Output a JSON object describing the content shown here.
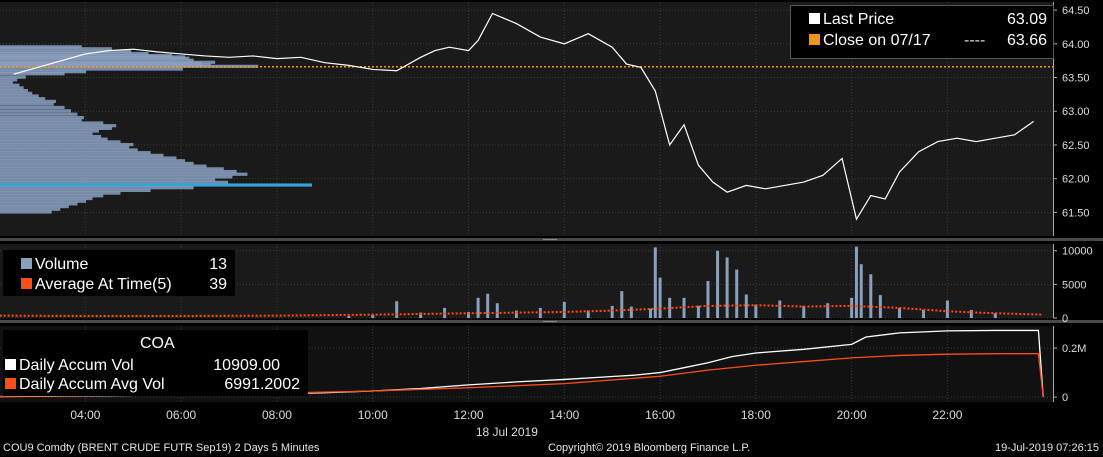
{
  "chart_data": [
    {
      "type": "line",
      "panel": "price",
      "ylim": [
        61.15,
        64.62
      ],
      "y_ticks": [
        "64.50",
        "64.00",
        "63.50",
        "63.00",
        "62.50",
        "62.00",
        "61.50"
      ],
      "series": [
        {
          "name": "Last Price",
          "value_label": "63.09",
          "x": [
            2.5,
            3.0,
            3.5,
            4.0,
            4.5,
            5.0,
            5.5,
            6.0,
            6.5,
            7.0,
            7.5,
            8.0,
            8.5,
            9.0,
            9.5,
            10.0,
            10.5,
            11.0,
            11.3,
            11.6,
            12.0,
            12.2,
            12.5,
            13.0,
            13.5,
            14.0,
            14.5,
            15.0,
            15.3,
            15.6,
            15.9,
            16.2,
            16.5,
            16.8,
            17.1,
            17.4,
            17.8,
            18.2,
            18.6,
            19.0,
            19.4,
            19.8,
            20.1,
            20.4,
            20.7,
            21.0,
            21.4,
            21.8,
            22.2,
            22.6,
            23.0,
            23.4,
            23.8
          ],
          "y": [
            63.55,
            63.65,
            63.75,
            63.85,
            63.9,
            63.92,
            63.88,
            63.85,
            63.82,
            63.8,
            63.82,
            63.78,
            63.8,
            63.72,
            63.68,
            63.62,
            63.6,
            63.8,
            63.9,
            63.95,
            63.9,
            64.05,
            64.45,
            64.3,
            64.1,
            64.0,
            64.15,
            63.95,
            63.7,
            63.65,
            63.3,
            62.5,
            62.8,
            62.2,
            61.95,
            61.8,
            61.9,
            61.85,
            61.9,
            61.95,
            62.05,
            62.3,
            61.4,
            61.75,
            61.7,
            62.1,
            62.4,
            62.55,
            62.6,
            62.55,
            62.6,
            62.65,
            62.85
          ]
        },
        {
          "name": "Close on 07/17",
          "value_label": "63.66",
          "y": 63.66
        }
      ],
      "volume_profile": {
        "color": "#8aa0bf",
        "highlight_color": "#2ea6d9",
        "price_levels": [
          63.95,
          63.92,
          63.88,
          63.85,
          63.82,
          63.8,
          63.78,
          63.75,
          63.72,
          63.7,
          63.68,
          63.66,
          63.62,
          63.58,
          63.55,
          63.5,
          63.46,
          63.42,
          63.38,
          63.34,
          63.3,
          63.26,
          63.22,
          63.18,
          63.14,
          63.1,
          63.05,
          63.0,
          62.95,
          62.9,
          62.86,
          62.82,
          62.78,
          62.74,
          62.7,
          62.66,
          62.62,
          62.58,
          62.54,
          62.5,
          62.46,
          62.42,
          62.38,
          62.34,
          62.3,
          62.26,
          62.22,
          62.18,
          62.14,
          62.1,
          62.06,
          62.02,
          61.98,
          61.94,
          61.9,
          61.86,
          61.82,
          61.78,
          61.74,
          61.7,
          61.66,
          61.62,
          61.58,
          61.54,
          61.5
        ],
        "volumes": [
          380,
          520,
          610,
          690,
          800,
          860,
          880,
          900,
          1000,
          940,
          980,
          1200,
          850,
          400,
          300,
          120,
          80,
          60,
          90,
          110,
          130,
          150,
          180,
          210,
          260,
          250,
          300,
          330,
          360,
          390,
          380,
          480,
          540,
          520,
          460,
          430,
          470,
          500,
          560,
          620,
          600,
          640,
          700,
          760,
          820,
          860,
          900,
          960,
          1040,
          1100,
          1150,
          1080,
          1000,
          1060,
          1450,
          900,
          700,
          560,
          480,
          430,
          400,
          360,
          320,
          280,
          240
        ]
      }
    },
    {
      "type": "bar",
      "panel": "volume",
      "ylim": [
        0,
        11000
      ],
      "y_ticks": [
        "10000",
        "5000",
        "0"
      ],
      "series": [
        {
          "name": "Volume",
          "value_label": "13"
        },
        {
          "name": "Average At Time(5)",
          "value_label": "39"
        }
      ],
      "x": [
        9.5,
        10.0,
        10.5,
        11.0,
        11.5,
        12.0,
        12.2,
        12.4,
        12.6,
        13.0,
        13.5,
        14.0,
        14.5,
        15.0,
        15.2,
        15.4,
        15.8,
        15.9,
        16.0,
        16.2,
        16.5,
        16.8,
        17.0,
        17.2,
        17.4,
        17.6,
        17.8,
        18.0,
        18.5,
        19.0,
        19.5,
        20.0,
        20.1,
        20.2,
        20.4,
        20.6,
        21.0,
        21.5,
        22.0,
        22.5,
        23.0
      ],
      "volume": [
        300,
        500,
        2500,
        800,
        1500,
        900,
        3000,
        3600,
        2200,
        1100,
        1500,
        2400,
        1100,
        1800,
        4000,
        1700,
        1400,
        10500,
        6000,
        3000,
        3000,
        1800,
        5500,
        10000,
        9000,
        7200,
        3500,
        2000,
        2600,
        1800,
        2200,
        3000,
        10600,
        8000,
        6500,
        3400,
        1500,
        1200,
        2600,
        1200,
        700
      ],
      "average_x": [
        0,
        2,
        4,
        6,
        8,
        10,
        12,
        14,
        15,
        16,
        17,
        18,
        19,
        20,
        21,
        22,
        23,
        24
      ],
      "average": [
        400,
        350,
        300,
        300,
        350,
        500,
        700,
        900,
        1100,
        1400,
        1800,
        1900,
        1700,
        1800,
        1500,
        1000,
        700,
        500
      ]
    },
    {
      "type": "line",
      "panel": "accum",
      "title": "COA",
      "ylim": [
        -20000,
        290000
      ],
      "y_ticks": [
        "0.2M",
        "0"
      ],
      "series": [
        {
          "name": "Daily Accum Vol",
          "value_label": "10909.00",
          "x": [
            0,
            2,
            4,
            6,
            8,
            9,
            10,
            11,
            12,
            13,
            14,
            15,
            15.5,
            16,
            16.5,
            17,
            17.5,
            18,
            19,
            20,
            20.3,
            21,
            22,
            23,
            23.9,
            24.0
          ],
          "y": [
            0,
            2000,
            5000,
            9000,
            14000,
            18000,
            25000,
            35000,
            50000,
            62000,
            72000,
            84000,
            90000,
            100000,
            120000,
            140000,
            165000,
            180000,
            195000,
            215000,
            245000,
            262000,
            270000,
            272000,
            272000,
            0
          ]
        },
        {
          "name": "Daily Accum Avg Vol",
          "value_label": "6991.2002",
          "x": [
            0,
            2,
            4,
            6,
            8,
            10,
            12,
            14,
            16,
            17,
            18,
            19,
            20,
            21,
            22,
            23,
            23.9,
            24.0
          ],
          "y": [
            0,
            3000,
            6000,
            10000,
            16000,
            25000,
            38000,
            55000,
            85000,
            110000,
            130000,
            145000,
            160000,
            170000,
            175000,
            177000,
            177000,
            0
          ]
        }
      ]
    }
  ],
  "x_axis": {
    "ticks": [
      "04:00",
      "06:00",
      "08:00",
      "10:00",
      "12:00",
      "14:00",
      "16:00",
      "18:00",
      "20:00",
      "22:00"
    ],
    "tick_hours": [
      4,
      6,
      8,
      10,
      12,
      14,
      16,
      18,
      20,
      22
    ],
    "date_label": "18 Jul 2019"
  },
  "colors": {
    "last_price": "#ffffff",
    "close": "#f0961e",
    "volume": "#8aa0bf",
    "average": "#ff4d1a",
    "accum_vol": "#ffffff",
    "accum_avg": "#ff4d1a",
    "panel_bg": "#1a1a1a",
    "grid": "#3c3c3c"
  },
  "footer": {
    "security": "COU9 Comdty (BRENT CRUDE FUTR  Sep19) 2 Days 5 Minutes",
    "copyright": "Copyright© 2019 Bloomberg Finance L.P.",
    "timestamp": "19-Jul-2019 07:26:15"
  }
}
